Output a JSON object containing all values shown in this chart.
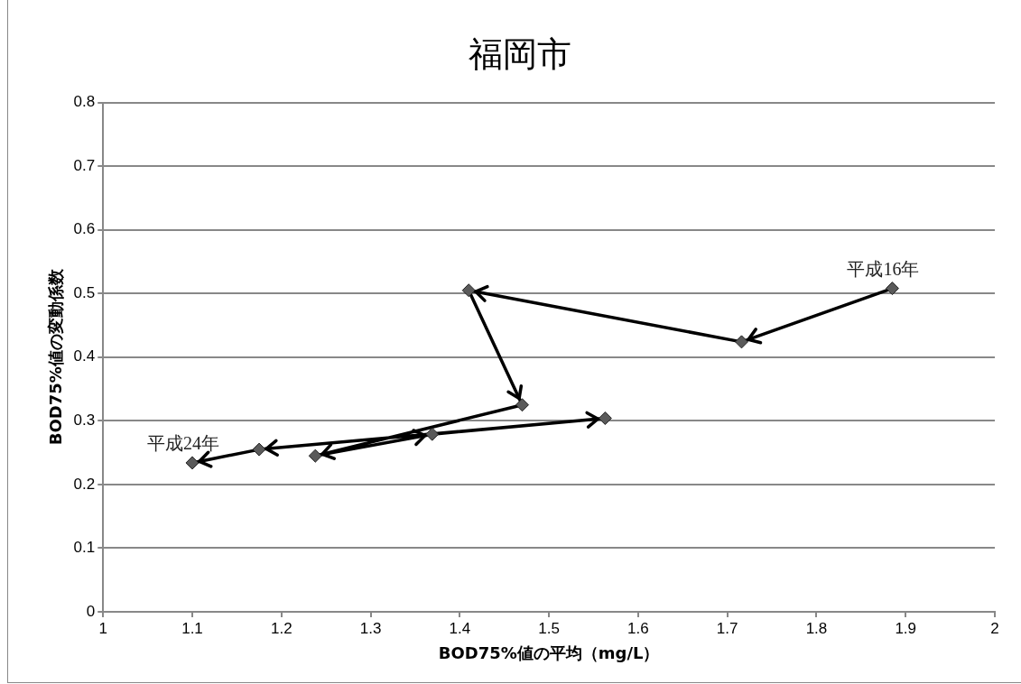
{
  "chart_data": {
    "type": "line",
    "title": "福岡市",
    "xlabel": "BOD75%値の平均（mg/L）",
    "ylabel": "BOD75%値の変動係数",
    "x": [
      1.885,
      1.716,
      1.41,
      1.47,
      1.238,
      1.369,
      1.563,
      1.175,
      1.1
    ],
    "series": [
      {
        "color": "#000000",
        "values": [
          0.508,
          0.424,
          0.505,
          0.325,
          0.245,
          0.279,
          0.304,
          0.255,
          0.234
        ]
      }
    ],
    "xlim": [
      1,
      2
    ],
    "xticks": [
      1,
      1.1,
      1.2,
      1.3,
      1.4,
      1.5,
      1.6,
      1.7,
      1.8,
      1.9,
      2
    ],
    "ylim": [
      0,
      0.8
    ],
    "yticks": [
      0,
      0.1,
      0.2,
      0.3,
      0.4,
      0.5,
      0.6,
      0.7,
      0.8
    ],
    "annotations": [
      {
        "text": "平成16年",
        "x": 1.885,
        "y": 0.508
      },
      {
        "text": "平成24年",
        "x": 1.1,
        "y": 0.234
      }
    ],
    "grid": "y",
    "legend": false,
    "marker": "diamond",
    "line_style": "solid"
  }
}
